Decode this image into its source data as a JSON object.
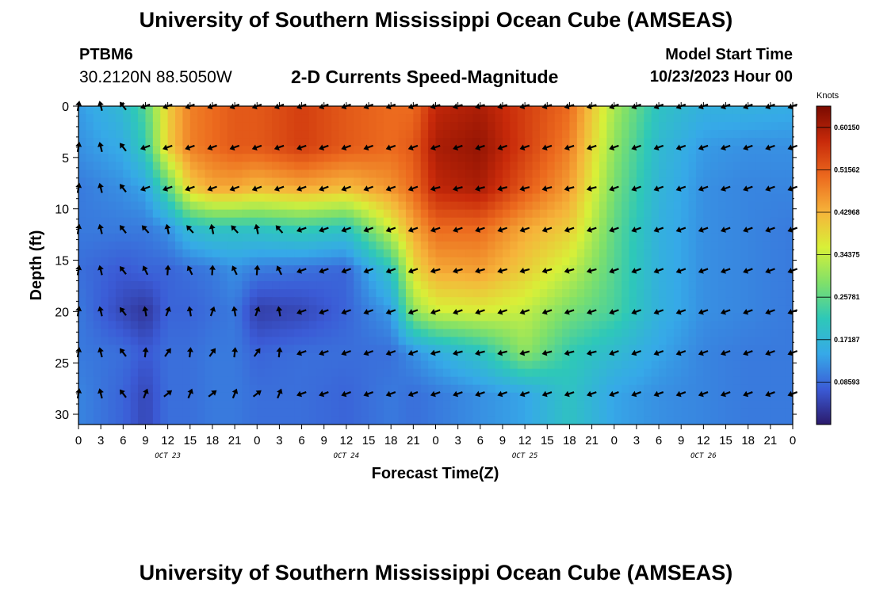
{
  "header": {
    "title": "University of Southern Mississippi Ocean Cube (AMSEAS)",
    "station": "PTBM6",
    "coords": "30.2120N  88.5050W",
    "chart_title": "2-D Currents Speed-Magnitude",
    "start_label": "Model Start Time",
    "start_value": "10/23/2023 Hour 00"
  },
  "footer": {
    "title": "University of Southern Mississippi Ocean Cube (AMSEAS)"
  },
  "colors": {
    "scale": [
      "#2b1a6b",
      "#3b5bd6",
      "#36a9e8",
      "#2ec8b8",
      "#7fe06a",
      "#d8f038",
      "#f6b43a",
      "#ec6a1e",
      "#c82a0a",
      "#7a0a00"
    ]
  },
  "chart_data": {
    "type": "heatmap",
    "title": "2-D Currents Speed-Magnitude",
    "xlabel": "Forecast Time(Z)",
    "ylabel": "Depth (ft)",
    "x_hours_range": [
      0,
      96
    ],
    "ylim": [
      0,
      31
    ],
    "y_reversed": true,
    "x_tick_labels": [
      "0",
      "3",
      "6",
      "9",
      "12",
      "15",
      "18",
      "21",
      "0",
      "3",
      "6",
      "9",
      "12",
      "15",
      "18",
      "21",
      "0",
      "3",
      "6",
      "9",
      "12",
      "15",
      "18",
      "21",
      "0",
      "3",
      "6",
      "9",
      "12",
      "15",
      "18",
      "21",
      "0"
    ],
    "day_labels": [
      "OCT 23",
      "OCT 24",
      "OCT 25",
      "OCT 26"
    ],
    "y_ticks": [
      0,
      5,
      10,
      15,
      20,
      25,
      30
    ],
    "colorbar": {
      "label": "Knots",
      "ticks": [
        "0.60150",
        "0.51562",
        "0.42968",
        "0.34375",
        "0.25781",
        "0.17187",
        "0.08593"
      ],
      "range": [
        0,
        0.6445
      ]
    },
    "arrow_depths": [
      0,
      4,
      8,
      12,
      16,
      20,
      24,
      28
    ],
    "speed_grid_depths": [
      0,
      4,
      8,
      12,
      16,
      20,
      24,
      28,
      31
    ],
    "speed_grid_hours": [
      0,
      6,
      9,
      12,
      15,
      18,
      21,
      24,
      30,
      36,
      42,
      45,
      48,
      54,
      60,
      66,
      72,
      78,
      84,
      90,
      96
    ],
    "speed_grid": [
      [
        0.13,
        0.18,
        0.25,
        0.4,
        0.48,
        0.5,
        0.52,
        0.52,
        0.55,
        0.52,
        0.5,
        0.5,
        0.58,
        0.6,
        0.55,
        0.5,
        0.32,
        0.2,
        0.16,
        0.16,
        0.15
      ],
      [
        0.12,
        0.15,
        0.22,
        0.4,
        0.48,
        0.5,
        0.52,
        0.52,
        0.55,
        0.52,
        0.5,
        0.52,
        0.6,
        0.62,
        0.55,
        0.48,
        0.3,
        0.18,
        0.13,
        0.12,
        0.12
      ],
      [
        0.1,
        0.12,
        0.14,
        0.25,
        0.4,
        0.44,
        0.44,
        0.42,
        0.44,
        0.42,
        0.46,
        0.5,
        0.58,
        0.6,
        0.52,
        0.45,
        0.28,
        0.17,
        0.12,
        0.11,
        0.11
      ],
      [
        0.1,
        0.1,
        0.1,
        0.12,
        0.18,
        0.2,
        0.2,
        0.2,
        0.22,
        0.2,
        0.35,
        0.44,
        0.5,
        0.5,
        0.44,
        0.4,
        0.26,
        0.16,
        0.12,
        0.11,
        0.1
      ],
      [
        0.09,
        0.07,
        0.08,
        0.08,
        0.09,
        0.1,
        0.12,
        0.1,
        0.09,
        0.08,
        0.2,
        0.38,
        0.44,
        0.45,
        0.4,
        0.34,
        0.25,
        0.16,
        0.12,
        0.11,
        0.1
      ],
      [
        0.1,
        0.05,
        0.03,
        0.08,
        0.08,
        0.09,
        0.1,
        0.04,
        0.05,
        0.08,
        0.13,
        0.3,
        0.35,
        0.36,
        0.34,
        0.28,
        0.24,
        0.16,
        0.12,
        0.11,
        0.1
      ],
      [
        0.1,
        0.09,
        0.07,
        0.09,
        0.09,
        0.1,
        0.1,
        0.08,
        0.09,
        0.09,
        0.09,
        0.12,
        0.15,
        0.2,
        0.3,
        0.22,
        0.18,
        0.14,
        0.11,
        0.1,
        0.1
      ],
      [
        0.11,
        0.08,
        0.05,
        0.09,
        0.09,
        0.1,
        0.1,
        0.09,
        0.09,
        0.08,
        0.1,
        0.09,
        0.1,
        0.12,
        0.14,
        0.2,
        0.14,
        0.12,
        0.11,
        0.1,
        0.1
      ],
      [
        0.11,
        0.08,
        0.05,
        0.09,
        0.09,
        0.1,
        0.1,
        0.09,
        0.09,
        0.08,
        0.1,
        0.09,
        0.1,
        0.12,
        0.14,
        0.2,
        0.14,
        0.12,
        0.11,
        0.1,
        0.1
      ]
    ]
  }
}
